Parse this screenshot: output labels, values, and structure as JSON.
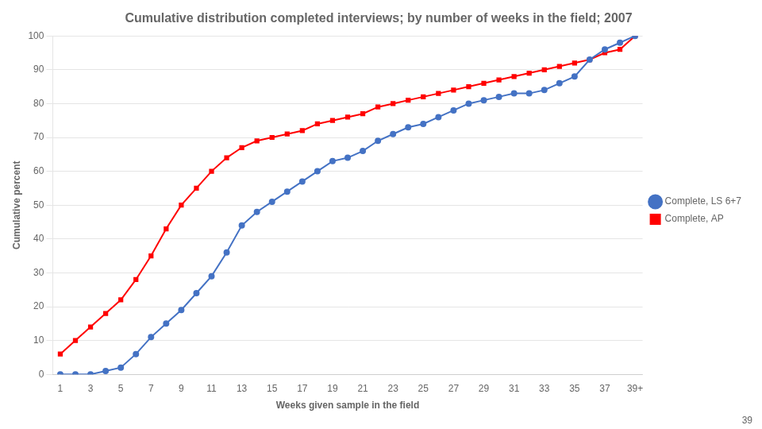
{
  "chart_data": {
    "type": "line",
    "title": "Cumulative distribution completed interviews; by number of weeks in the field; 2007",
    "x_label": "Weeks given sample in the field",
    "y_label": "Cumulative percent",
    "x": [
      1,
      2,
      3,
      4,
      5,
      6,
      7,
      8,
      9,
      10,
      11,
      12,
      13,
      14,
      15,
      16,
      17,
      18,
      19,
      20,
      21,
      22,
      23,
      24,
      25,
      26,
      27,
      28,
      29,
      30,
      31,
      32,
      33,
      34,
      35,
      36,
      37,
      38,
      39
    ],
    "series": [
      {
        "name": "Complete, LS 6+7",
        "color": "#4472C4",
        "marker": "circle",
        "values": [
          0,
          0,
          0,
          1,
          2,
          6,
          11,
          15,
          19,
          24,
          29,
          36,
          44,
          48,
          51,
          54,
          57,
          60,
          63,
          64,
          66,
          69,
          71,
          73,
          74,
          76,
          78,
          80,
          81,
          82,
          83,
          83,
          84,
          86,
          88,
          93,
          96,
          98,
          100
        ]
      },
      {
        "name": "Complete, AP",
        "color": "#FF0000",
        "marker": "square",
        "values": [
          6,
          10,
          14,
          18,
          22,
          28,
          35,
          43,
          50,
          55,
          60,
          64,
          67,
          69,
          70,
          71,
          72,
          74,
          75,
          76,
          77,
          79,
          80,
          81,
          82,
          83,
          84,
          85,
          86,
          87,
          88,
          89,
          90,
          91,
          92,
          93,
          95,
          96,
          100
        ]
      }
    ],
    "xlim": [
      0.5,
      39.5
    ],
    "xticks": [
      1,
      3,
      5,
      7,
      9,
      11,
      13,
      15,
      17,
      19,
      21,
      23,
      25,
      27,
      29,
      31,
      33,
      35,
      37,
      {
        "value": 39,
        "label": "39+"
      }
    ],
    "ylim": [
      0,
      100
    ],
    "yticks": [
      0,
      10,
      20,
      30,
      40,
      50,
      60,
      70,
      80,
      90,
      100
    ],
    "grid": "y",
    "legend": "right",
    "annotations": [
      "39"
    ]
  }
}
